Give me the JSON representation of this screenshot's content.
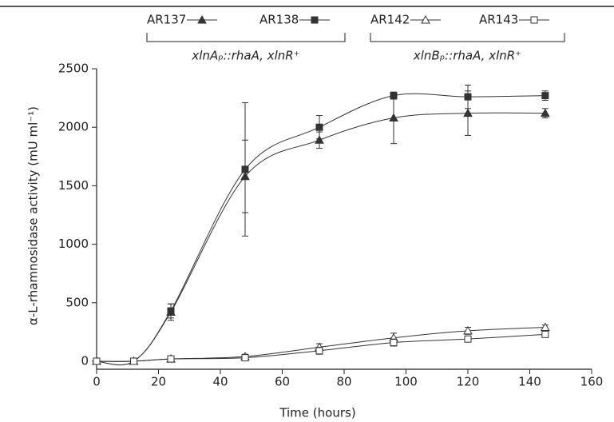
{
  "chart_data": {
    "type": "line",
    "x_label": "Time (hours)",
    "y_label": "α-L-rhamnosidase activity (mU ml⁻¹)",
    "x": [
      0,
      12,
      24,
      48,
      72,
      96,
      120,
      145
    ],
    "xlim": [
      0,
      160
    ],
    "xticks": [
      0,
      20,
      40,
      60,
      80,
      100,
      120,
      140,
      160
    ],
    "ylim": [
      0,
      2500
    ],
    "yticks": [
      0,
      500,
      1000,
      1500,
      2000,
      2500
    ],
    "legend_groups": [
      {
        "label": "xlnAₚ::rhaA, xlnR⁺",
        "series": [
          0,
          1
        ]
      },
      {
        "label": "xlnBₚ::rhaA, xlnR⁺",
        "series": [
          2,
          3
        ]
      }
    ],
    "series": [
      {
        "name": "AR137",
        "color": "#333333",
        "marker": "triangle",
        "filled": true,
        "values": [
          0,
          0,
          420,
          1580,
          1890,
          2080,
          2120,
          2120
        ],
        "errors": [
          20,
          10,
          70,
          310,
          70,
          220,
          190,
          40
        ]
      },
      {
        "name": "AR138",
        "color": "#333333",
        "marker": "square",
        "filled": true,
        "values": [
          0,
          0,
          430,
          1640,
          2000,
          2270,
          2260,
          2270
        ],
        "errors": [
          20,
          10,
          60,
          570,
          100,
          30,
          100,
          40
        ]
      },
      {
        "name": "AR142",
        "color": "#333333",
        "marker": "triangle",
        "filled": false,
        "values": [
          0,
          0,
          20,
          40,
          120,
          200,
          260,
          290
        ],
        "errors": [
          10,
          10,
          10,
          20,
          30,
          40,
          30,
          20
        ]
      },
      {
        "name": "AR143",
        "color": "#333333",
        "marker": "square",
        "filled": false,
        "values": [
          0,
          0,
          20,
          30,
          90,
          160,
          190,
          230
        ],
        "errors": [
          10,
          10,
          10,
          20,
          30,
          30,
          20,
          20
        ]
      }
    ]
  }
}
